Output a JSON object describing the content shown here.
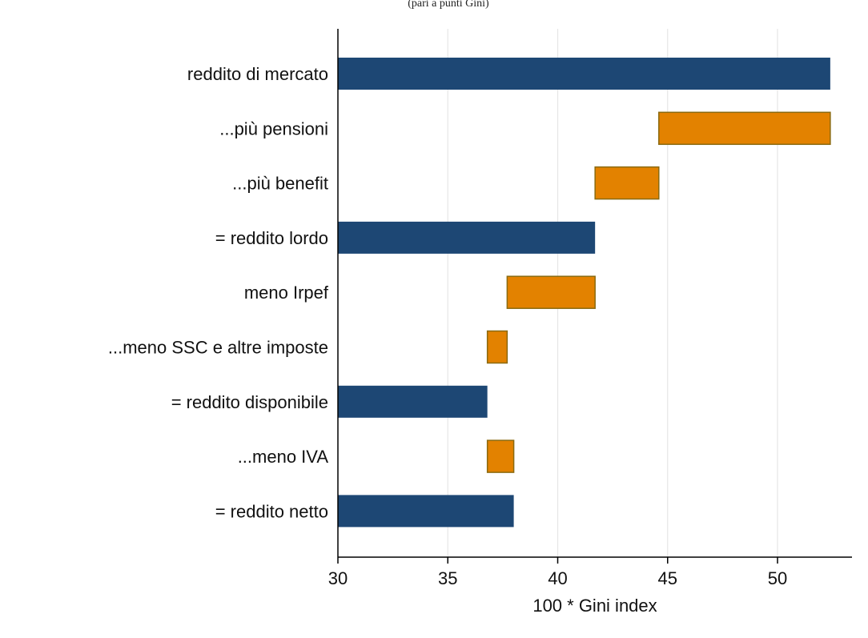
{
  "chart_data": {
    "type": "bar",
    "orientation": "horizontal",
    "subtype": "floating-waterfall",
    "title": "(pari a punti Gini)",
    "xlabel": "100 * Gini index",
    "ylabel": "",
    "xlim": [
      30,
      53.3
    ],
    "xticks": [
      30,
      35,
      40,
      45,
      50
    ],
    "grid": "vertical",
    "legend": "none",
    "colors": {
      "level": "#1d4774",
      "change": "#e38200",
      "change_border": "#8a6a10",
      "grid": "#e6e6e6",
      "axis": "#000000"
    },
    "categories": [
      "reddito di mercato",
      "...più pensioni",
      "...più benefit",
      "= reddito lordo",
      "meno Irpef",
      "...meno SSC e altre imposte",
      "= reddito disponibile",
      "...meno IVA",
      "= reddito netto"
    ],
    "bars": [
      {
        "label": "reddito di mercato",
        "kind": "level",
        "start": 30,
        "end": 52.4
      },
      {
        "label": "...più pensioni",
        "kind": "change",
        "start": 44.6,
        "end": 52.4
      },
      {
        "label": "...più benefit",
        "kind": "change",
        "start": 41.7,
        "end": 44.6
      },
      {
        "label": "= reddito lordo",
        "kind": "level",
        "start": 30,
        "end": 41.7
      },
      {
        "label": "meno Irpef",
        "kind": "change",
        "start": 37.7,
        "end": 41.7
      },
      {
        "label": "...meno SSC e altre imposte",
        "kind": "change",
        "start": 36.8,
        "end": 37.7
      },
      {
        "label": "= reddito disponibile",
        "kind": "level",
        "start": 30,
        "end": 36.8
      },
      {
        "label": "...meno IVA",
        "kind": "change",
        "start": 36.8,
        "end": 38.0
      },
      {
        "label": "= reddito netto",
        "kind": "level",
        "start": 30,
        "end": 38.0
      }
    ]
  }
}
